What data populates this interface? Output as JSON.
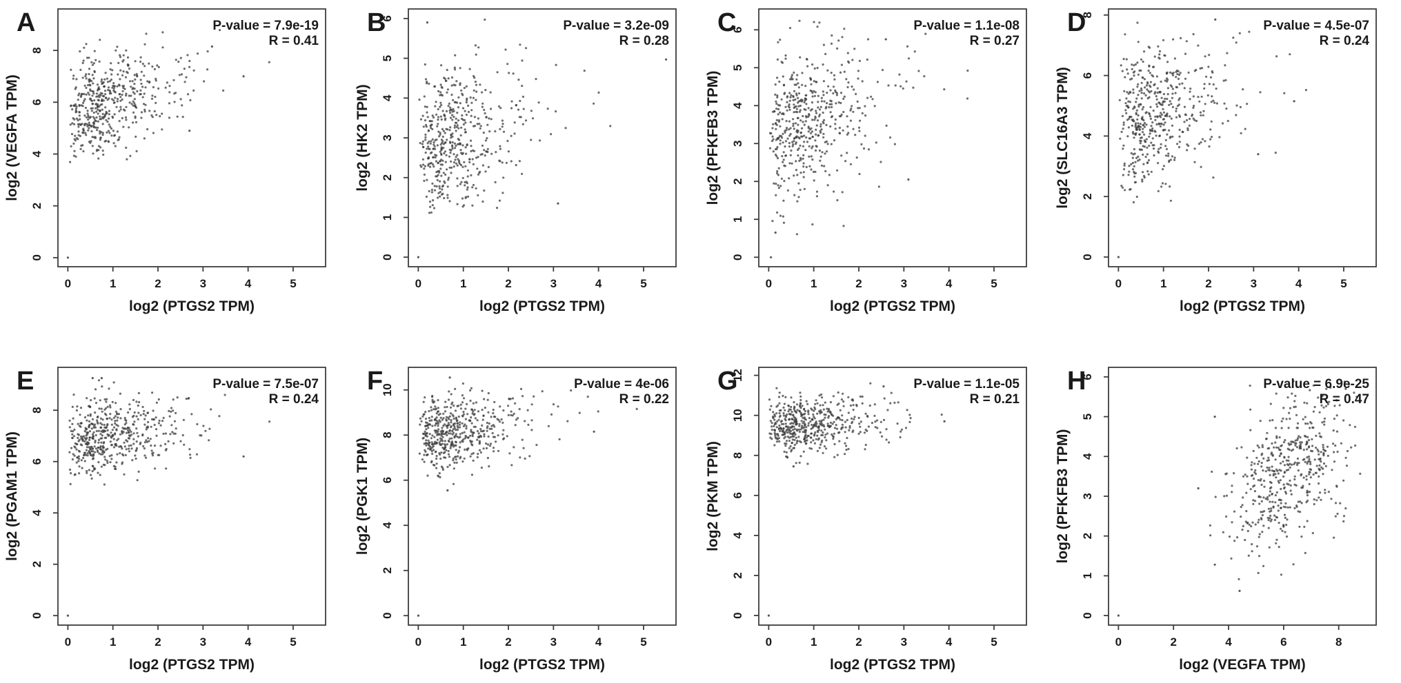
{
  "figure": {
    "title": "",
    "background": "#ffffff",
    "colors": {
      "text": "#1a1a1a",
      "axis": "#3d3d3d",
      "point": "#3c3c3c"
    },
    "panel_letters": [
      "A",
      "B",
      "C",
      "D",
      "E",
      "F",
      "G",
      "H"
    ]
  },
  "chart_data": [
    {
      "panel": "A",
      "type": "scatter",
      "xlabel": "log2 (PTGS2 TPM)",
      "ylabel": "log2 (VEGFA TPM)",
      "p_value_label": "P-value = 7.9e-19",
      "r_label": "R = 0.41",
      "p_value": 7.9e-19,
      "r": 0.41,
      "n_points": 500,
      "seed": 1,
      "xlim": [
        -0.22,
        5.72
      ],
      "ylim": [
        -0.35,
        9.6
      ],
      "xticks": [
        0,
        1,
        2,
        3,
        4,
        5
      ],
      "yticks": [
        0,
        2,
        4,
        6,
        8
      ],
      "x_dist": {
        "type": "gamma2",
        "scale": 0.5,
        "clip": [
          0,
          5.5
        ]
      },
      "y_dist": {
        "mean": 6.0,
        "sd": 1.1,
        "clip": [
          2.85,
          8.85
        ]
      },
      "extra_points": [
        [
          0,
          0
        ],
        [
          3.9,
          7.0
        ],
        [
          3.2,
          8.15
        ],
        [
          2.7,
          4.9
        ]
      ]
    },
    {
      "panel": "B",
      "type": "scatter",
      "xlabel": "log2 (PTGS2 TPM)",
      "ylabel": "log2 (HK2 TPM)",
      "p_value_label": "P-value = 3.2e-09",
      "r_label": "R = 0.28",
      "p_value": 3.2e-09,
      "r": 0.28,
      "n_points": 500,
      "seed": 2,
      "xlim": [
        -0.22,
        5.72
      ],
      "ylim": [
        -0.24,
        6.24
      ],
      "xticks": [
        0,
        1,
        2,
        3,
        4,
        5
      ],
      "yticks": [
        0,
        1,
        2,
        3,
        4,
        5,
        6
      ],
      "x_dist": {
        "type": "gamma2",
        "scale": 0.5,
        "clip": [
          0,
          5.5
        ]
      },
      "y_dist": {
        "mean": 3.0,
        "sd": 0.95,
        "clip": [
          1.1,
          6.0
        ]
      },
      "extra_points": [
        [
          0,
          0
        ],
        [
          5.5,
          4.97
        ],
        [
          3.1,
          1.35
        ],
        [
          0.2,
          5.9
        ]
      ]
    },
    {
      "panel": "C",
      "type": "scatter",
      "xlabel": "log2 (PTGS2 TPM)",
      "ylabel": "log2 (PFKFB3 TPM)",
      "p_value_label": "P-value = 1.1e-08",
      "r_label": "R = 0.27",
      "p_value": 1.1e-08,
      "r": 0.27,
      "n_points": 500,
      "seed": 3,
      "xlim": [
        -0.22,
        5.72
      ],
      "ylim": [
        -0.25,
        6.55
      ],
      "xticks": [
        0,
        1,
        2,
        3,
        4,
        5
      ],
      "yticks": [
        0,
        1,
        2,
        3,
        4,
        5,
        6
      ],
      "x_dist": {
        "type": "gamma2",
        "scale": 0.5,
        "clip": [
          0,
          5.5
        ]
      },
      "y_dist": {
        "mean": 3.6,
        "sd": 1.0,
        "clip": [
          0.6,
          6.3
        ]
      },
      "extra_points": [
        [
          0.05,
          0
        ],
        [
          3.1,
          2.05
        ],
        [
          0.15,
          0.65
        ],
        [
          2.6,
          5.75
        ]
      ]
    },
    {
      "panel": "D",
      "type": "scatter",
      "xlabel": "log2 (PTGS2 TPM)",
      "ylabel": "log2 (SLC16A3 TPM)",
      "p_value_label": "P-value = 4.5e-07",
      "r_label": "R = 0.24",
      "p_value": 4.5e-07,
      "r": 0.24,
      "n_points": 500,
      "seed": 4,
      "xlim": [
        -0.22,
        5.72
      ],
      "ylim": [
        -0.32,
        8.2
      ],
      "xticks": [
        0,
        1,
        2,
        3,
        4,
        5
      ],
      "yticks": [
        0,
        2,
        4,
        6,
        8
      ],
      "x_dist": {
        "type": "gamma2",
        "scale": 0.5,
        "clip": [
          0,
          5.5
        ]
      },
      "y_dist": {
        "mean": 4.8,
        "sd": 1.15,
        "clip": [
          1.8,
          7.9
        ]
      },
      "extra_points": [
        [
          0,
          0
        ],
        [
          3.9,
          5.15
        ],
        [
          3.1,
          3.4
        ],
        [
          2.15,
          7.85
        ]
      ]
    },
    {
      "panel": "E",
      "type": "scatter",
      "xlabel": "log2 (PTGS2 TPM)",
      "ylabel": "log2 (PGAM1 TPM)",
      "p_value_label": "P-value = 7.5e-07",
      "r_label": "R = 0.24",
      "p_value": 7.5e-07,
      "r": 0.24,
      "n_points": 500,
      "seed": 5,
      "xlim": [
        -0.22,
        5.72
      ],
      "ylim": [
        -0.37,
        9.67
      ],
      "xticks": [
        0,
        1,
        2,
        3,
        4,
        5
      ],
      "yticks": [
        0,
        2,
        4,
        6,
        8
      ],
      "x_dist": {
        "type": "gamma2",
        "scale": 0.5,
        "clip": [
          0,
          5.5
        ]
      },
      "y_dist": {
        "mean": 7.0,
        "sd": 0.78,
        "clip": [
          5.0,
          9.3
        ]
      },
      "extra_points": [
        [
          0,
          0
        ],
        [
          3.9,
          6.2
        ],
        [
          0.55,
          9.25
        ],
        [
          0.75,
          9.25
        ]
      ]
    },
    {
      "panel": "F",
      "type": "scatter",
      "xlabel": "log2 (PTGS2 TPM)",
      "ylabel": "log2 (PGK1 TPM)",
      "p_value_label": "P-value = 4e-06",
      "r_label": "R = 0.22",
      "p_value": 4e-06,
      "r": 0.22,
      "n_points": 500,
      "seed": 6,
      "xlim": [
        -0.22,
        5.72
      ],
      "ylim": [
        -0.42,
        11.0
      ],
      "xticks": [
        0,
        1,
        2,
        3,
        4,
        5
      ],
      "yticks": [
        0,
        2,
        4,
        6,
        8,
        10
      ],
      "x_dist": {
        "type": "gamma2",
        "scale": 0.5,
        "clip": [
          0,
          5.5
        ]
      },
      "y_dist": {
        "mean": 8.2,
        "sd": 0.85,
        "clip": [
          5.5,
          10.6
        ]
      },
      "extra_points": [
        [
          0,
          0
        ],
        [
          3.9,
          8.15
        ],
        [
          0.7,
          10.55
        ],
        [
          0.65,
          5.55
        ]
      ]
    },
    {
      "panel": "G",
      "type": "scatter",
      "xlabel": "log2 (PTGS2 TPM)",
      "ylabel": "log2 (PKM TPM)",
      "p_value_label": "P-value = 1.1e-05",
      "r_label": "R = 0.21",
      "p_value": 1.1e-05,
      "r": 0.21,
      "n_points": 500,
      "seed": 7,
      "xlim": [
        -0.22,
        5.72
      ],
      "ylim": [
        -0.48,
        12.4
      ],
      "xticks": [
        0,
        1,
        2,
        3,
        4,
        5
      ],
      "yticks": [
        0,
        2,
        4,
        6,
        8,
        10,
        12
      ],
      "x_dist": {
        "type": "gamma2",
        "scale": 0.5,
        "clip": [
          0,
          5.5
        ]
      },
      "y_dist": {
        "mean": 9.6,
        "sd": 0.72,
        "clip": [
          7.4,
          11.9
        ]
      },
      "extra_points": [
        [
          0,
          0
        ],
        [
          3.9,
          9.7
        ],
        [
          2.55,
          11.45
        ],
        [
          0.55,
          7.45
        ]
      ]
    },
    {
      "panel": "H",
      "type": "scatter",
      "xlabel": "log2 (VEGFA TPM)",
      "ylabel": "log2 (PFKFB3 TPM)",
      "p_value_label": "P-value = 6.9e-25",
      "r_label": "R = 0.47",
      "p_value": 6.9e-25,
      "r": 0.47,
      "n_points": 500,
      "seed": 8,
      "xlim": [
        -0.36,
        9.36
      ],
      "ylim": [
        -0.24,
        6.24
      ],
      "xticks": [
        0,
        2,
        4,
        6,
        8
      ],
      "yticks": [
        0,
        1,
        2,
        3,
        4,
        5,
        6
      ],
      "x_dist": {
        "type": "normal",
        "mean": 6.1,
        "sd": 1.15,
        "clip": [
          3.3,
          9.0
        ]
      },
      "y_dist": {
        "mean": 3.6,
        "sd": 1.05,
        "clip": [
          0.5,
          6.0
        ]
      },
      "extra_points": [
        [
          0,
          0
        ],
        [
          3.5,
          5.0
        ],
        [
          2.9,
          3.2
        ],
        [
          4.4,
          0.62
        ],
        [
          3.5,
          1.28
        ]
      ]
    }
  ]
}
